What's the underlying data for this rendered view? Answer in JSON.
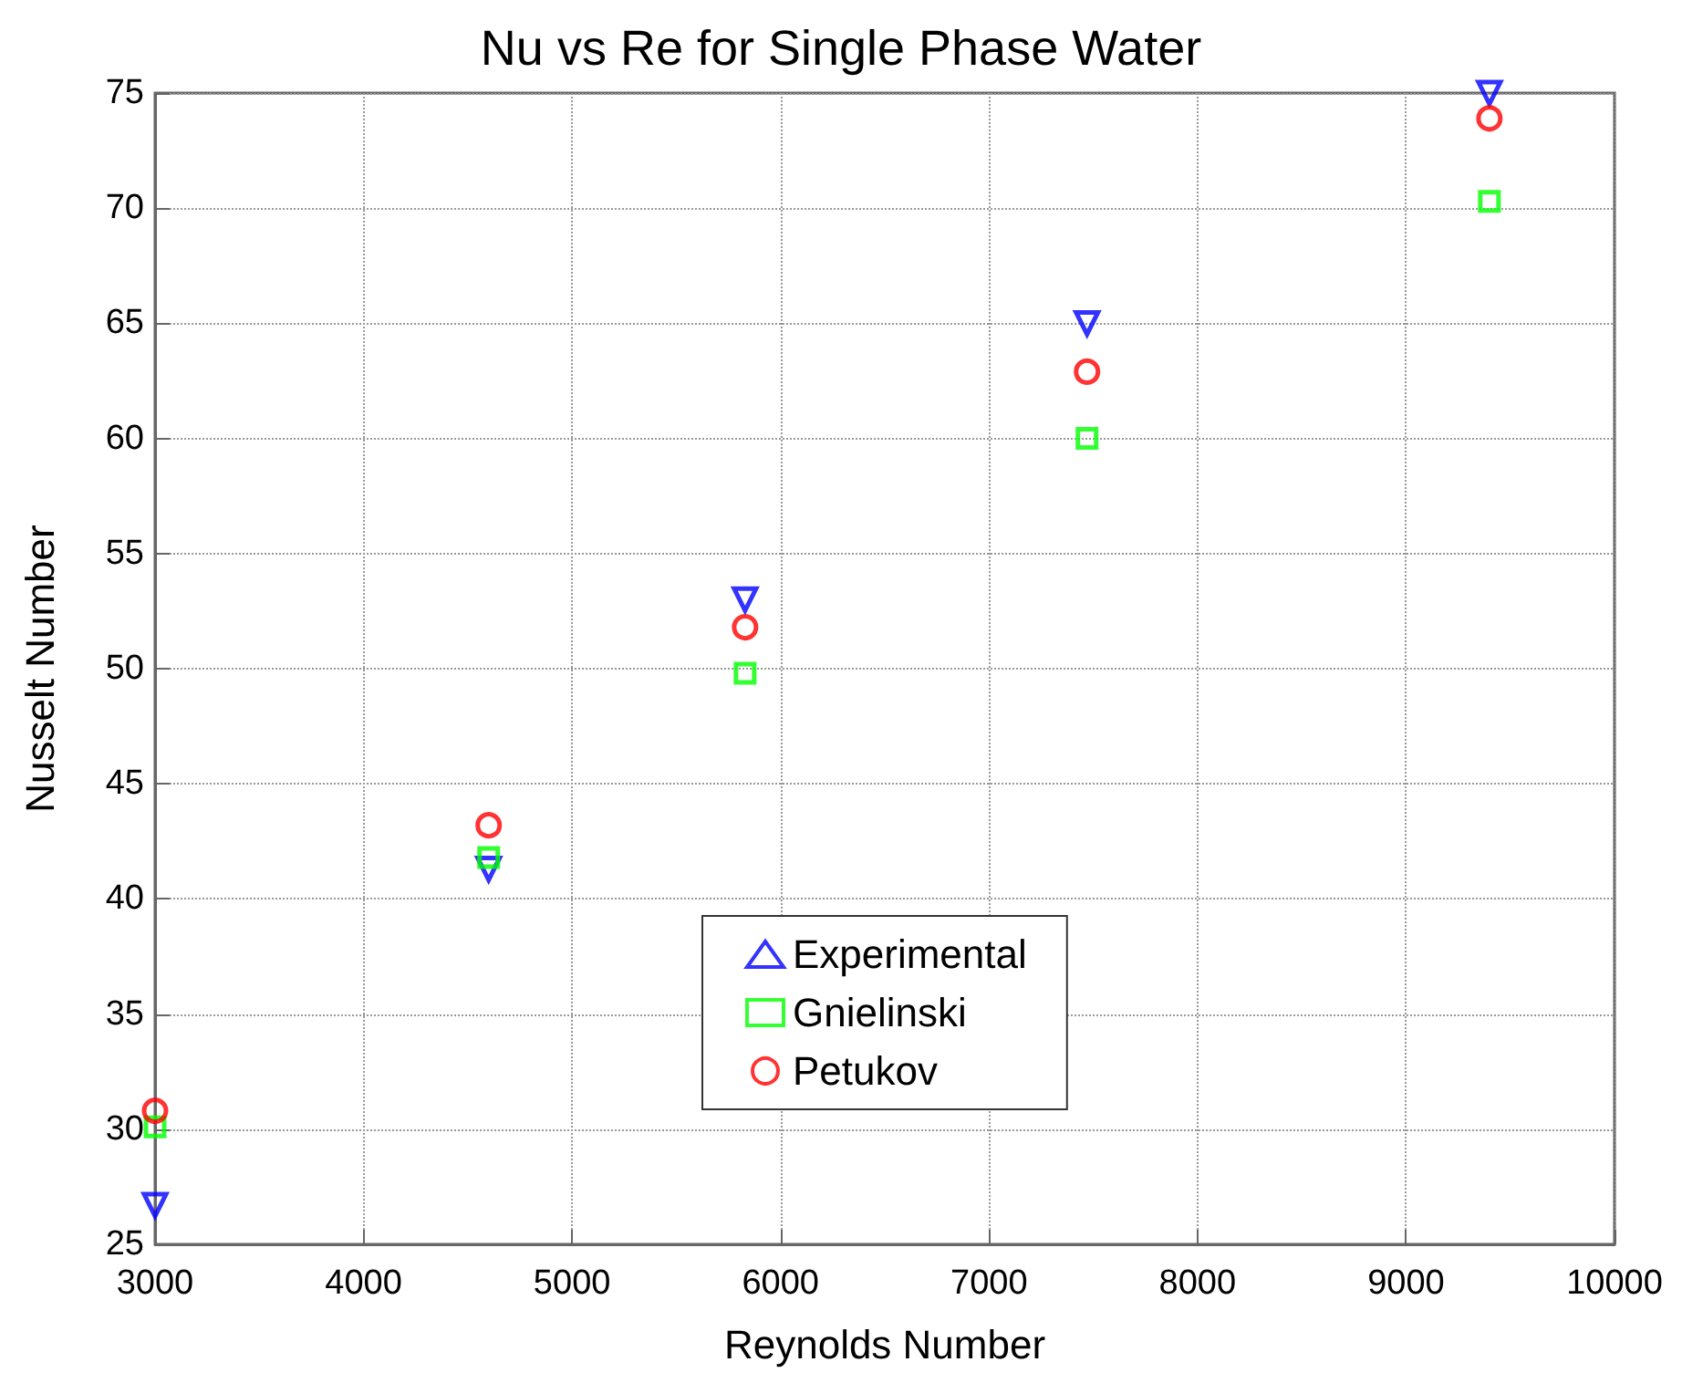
{
  "chart_data": {
    "type": "scatter",
    "title": "Nu vs Re for Single Phase Water",
    "xlabel": "Reynolds Number",
    "ylabel": "Nusselt Number",
    "x": [
      3000,
      4600,
      5830,
      7470,
      9400
    ],
    "series": [
      {
        "name": "Experimental",
        "color": "#0000ff",
        "marker": "triangle",
        "values": [
          26.7,
          41.3,
          53.0,
          65.0,
          75.0
        ]
      },
      {
        "name": "Gnielinski",
        "color": "#00ff00",
        "marker": "square",
        "values": [
          30.1,
          41.8,
          49.8,
          60.0,
          70.3
        ]
      },
      {
        "name": "Petukov",
        "color": "#ff0000",
        "marker": "circle",
        "values": [
          30.8,
          43.2,
          51.8,
          62.9,
          73.9
        ]
      }
    ],
    "xlim": [
      3000,
      10000
    ],
    "xticks": [
      3000,
      4000,
      5000,
      6000,
      7000,
      8000,
      9000,
      10000
    ],
    "ylim": [
      25,
      75
    ],
    "yticks": [
      25,
      30,
      35,
      40,
      45,
      50,
      55,
      60,
      65,
      70,
      75
    ],
    "grid": true,
    "legend": "bottom"
  }
}
